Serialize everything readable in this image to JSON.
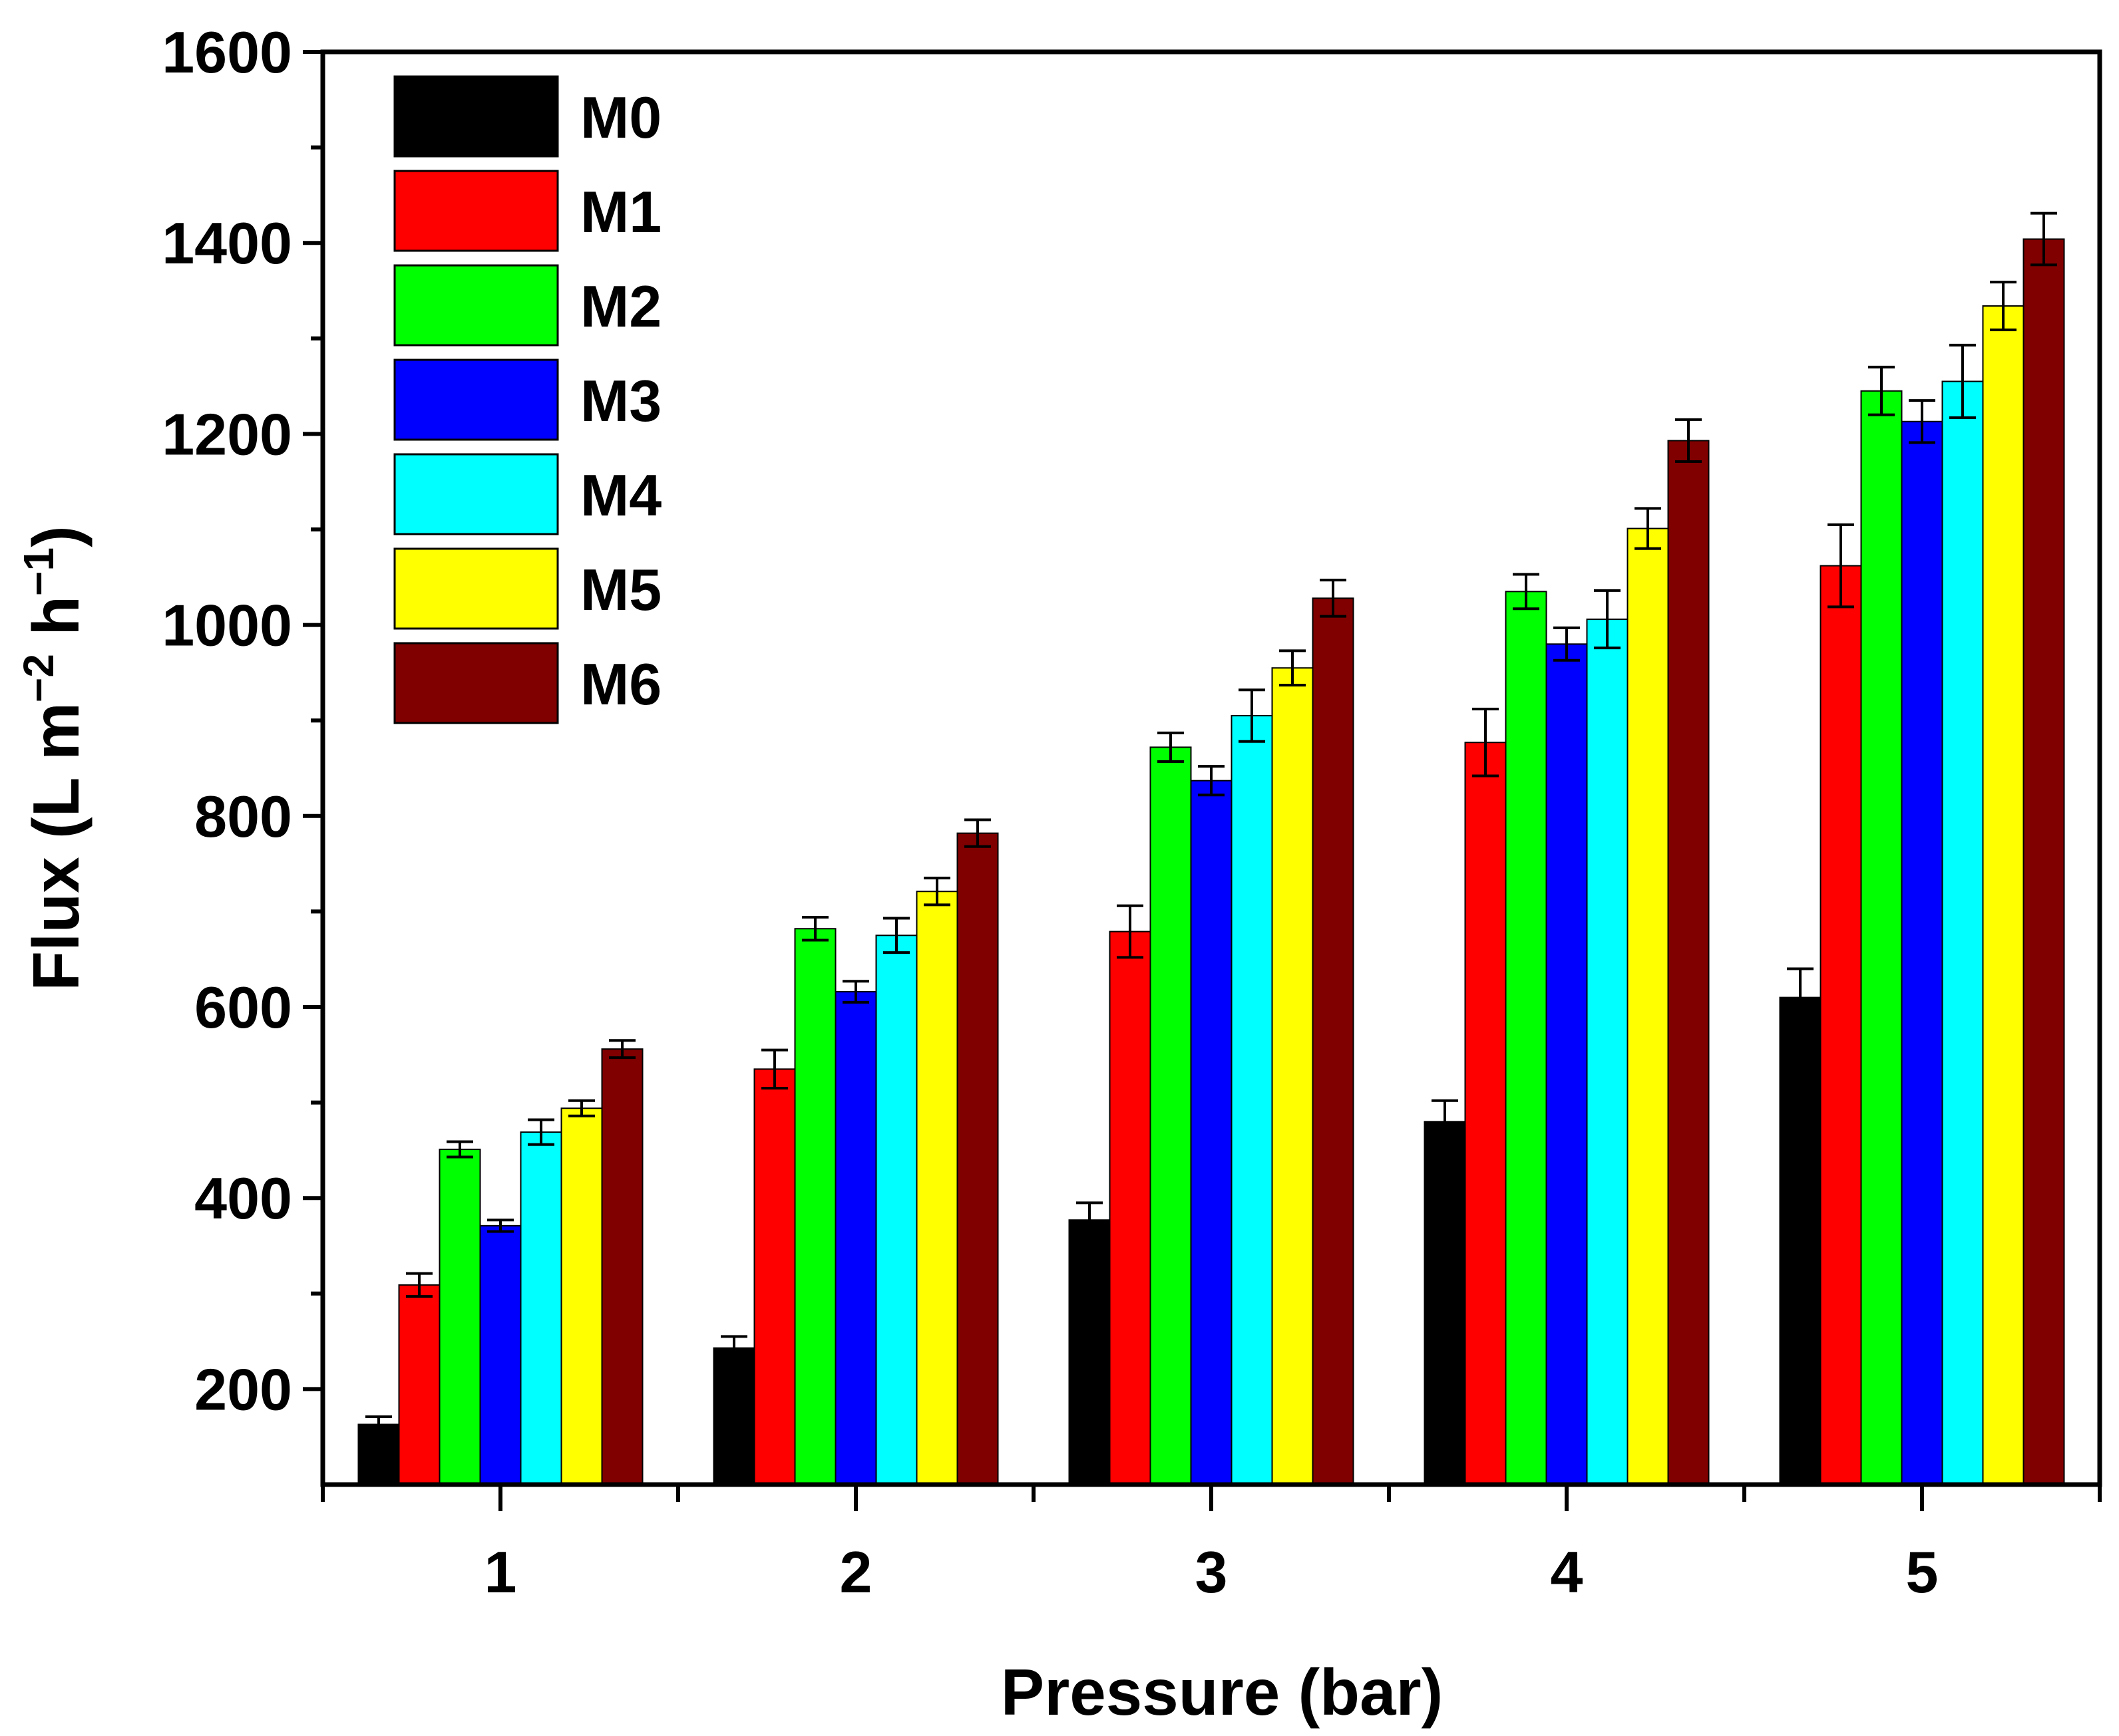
{
  "chart_data": {
    "type": "bar",
    "xlabel": "Pressure (bar)",
    "ylabel_main": "Flux (L m",
    "ylabel_exp1": "−2",
    "ylabel_mid": " h",
    "ylabel_exp2": "−1",
    "ylabel_close": ")",
    "ylim": [
      100,
      1600
    ],
    "yticks": [
      200,
      400,
      600,
      800,
      1000,
      1200,
      1400,
      1600
    ],
    "categories": [
      "1",
      "2",
      "3",
      "4",
      "5"
    ],
    "legend_position": "top-left",
    "series": [
      {
        "name": "M0",
        "color": "#000000",
        "values": [
          163,
          243,
          377,
          480,
          610
        ],
        "errors": [
          8,
          12,
          18,
          22,
          30
        ]
      },
      {
        "name": "M1",
        "color": "#ff0000",
        "values": [
          309,
          535,
          679,
          877,
          1062
        ],
        "errors": [
          12,
          20,
          27,
          35,
          43
        ]
      },
      {
        "name": "M2",
        "color": "#00ff00",
        "values": [
          451,
          682,
          872,
          1035,
          1245
        ],
        "errors": [
          8,
          12,
          15,
          18,
          25
        ]
      },
      {
        "name": "M3",
        "color": "#0000ff",
        "values": [
          371,
          616,
          837,
          980,
          1213
        ],
        "errors": [
          6,
          11,
          15,
          17,
          22
        ]
      },
      {
        "name": "M4",
        "color": "#00ffff",
        "values": [
          469,
          675,
          905,
          1006,
          1255
        ],
        "errors": [
          13,
          18,
          27,
          30,
          38
        ]
      },
      {
        "name": "M5",
        "color": "#ffff00",
        "values": [
          494,
          721,
          955,
          1101,
          1334
        ],
        "errors": [
          8,
          14,
          18,
          21,
          25
        ]
      },
      {
        "name": "M6",
        "color": "#800000",
        "values": [
          556,
          782,
          1028,
          1193,
          1404
        ],
        "errors": [
          9,
          14,
          19,
          22,
          27
        ]
      }
    ]
  }
}
